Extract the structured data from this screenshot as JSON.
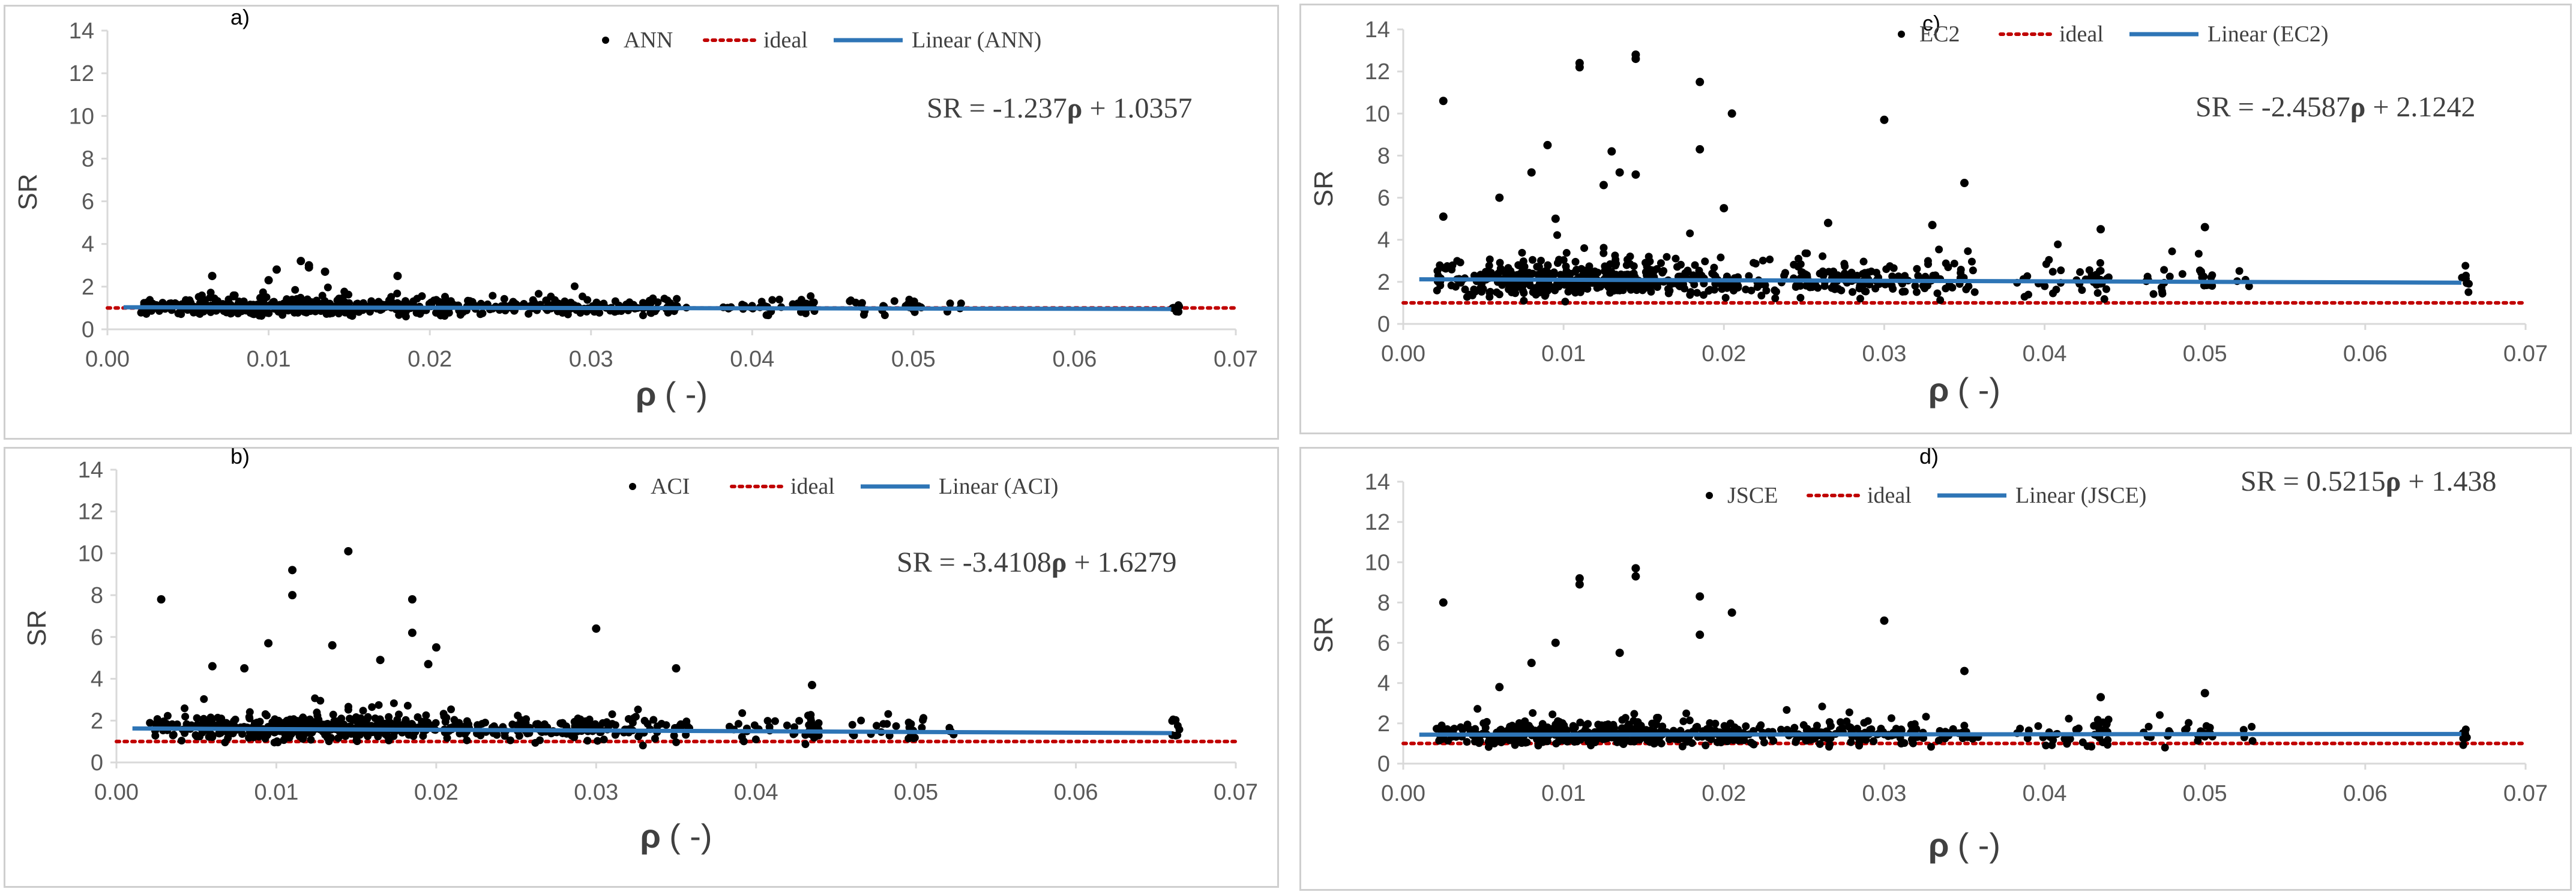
{
  "colors": {
    "points": "#000000",
    "ideal": "#c00000",
    "linear": "#2e75b6",
    "axis": "#d9d9d9",
    "text": "#404040"
  },
  "chart_data": [
    {
      "id": "a",
      "type": "scatter",
      "letter": "a)",
      "xlabel": "ρ",
      "xunit": "( -)",
      "ylabel": "SR",
      "xlim": [
        0,
        0.07
      ],
      "ylim": [
        0,
        14
      ],
      "x_ticks": [
        "0.00",
        "0.01",
        "0.02",
        "0.03",
        "0.04",
        "0.05",
        "0.06",
        "0.07"
      ],
      "y_ticks": [
        "0",
        "2",
        "4",
        "6",
        "8",
        "10",
        "12",
        "14"
      ],
      "legend": {
        "points": "ANN",
        "ideal": "ideal",
        "linear": "Linear (ANN)"
      },
      "equation": {
        "prefix": "SR = -1.237",
        "rho": "ρ",
        "suffix": " + 1.0357"
      },
      "ideal_y": 1,
      "trend": {
        "slope": -1.237,
        "intercept": 1.0357
      },
      "spread": 0.22,
      "outliers": [
        [
          0.012,
          3.2
        ],
        [
          0.0125,
          3.0
        ],
        [
          0.0065,
          2.5
        ],
        [
          0.01,
          2.3
        ],
        [
          0.018,
          2.5
        ],
        [
          0.0105,
          2.8
        ],
        [
          0.0135,
          2.7
        ],
        [
          0.0125,
          2.9
        ]
      ]
    },
    {
      "id": "b",
      "type": "scatter",
      "letter": "b)",
      "xlabel": "ρ",
      "xunit": "( -)",
      "ylabel": "SR",
      "xlim": [
        0,
        0.07
      ],
      "ylim": [
        0,
        14
      ],
      "x_ticks": [
        "0.00",
        "0.01",
        "0.02",
        "0.03",
        "0.04",
        "0.05",
        "0.06",
        "0.07"
      ],
      "y_ticks": [
        "0",
        "2",
        "4",
        "6",
        "8",
        "10",
        "12",
        "14"
      ],
      "legend": {
        "points": "ACI",
        "ideal": "ideal",
        "linear": "Linear (ACI)"
      },
      "equation": {
        "prefix": "SR = -3.4108",
        "rho": "ρ",
        "suffix": "  + 1.6279"
      },
      "ideal_y": 1,
      "trend": {
        "slope": -3.4108,
        "intercept": 1.6279
      },
      "spread": 0.35,
      "outliers": [
        [
          0.0028,
          7.8
        ],
        [
          0.011,
          9.2
        ],
        [
          0.011,
          8.0
        ],
        [
          0.0145,
          10.1
        ],
        [
          0.0185,
          7.8
        ],
        [
          0.0185,
          6.2
        ],
        [
          0.0095,
          5.7
        ],
        [
          0.02,
          5.5
        ],
        [
          0.03,
          6.4
        ],
        [
          0.0135,
          5.6
        ],
        [
          0.0165,
          4.9
        ],
        [
          0.008,
          4.5
        ],
        [
          0.0195,
          4.7
        ],
        [
          0.035,
          4.5
        ],
        [
          0.006,
          4.6
        ],
        [
          0.0435,
          3.7
        ]
      ]
    },
    {
      "id": "c",
      "type": "scatter",
      "letter": "c)",
      "xlabel": "ρ",
      "xunit": "( -)",
      "ylabel": "SR",
      "xlim": [
        0,
        0.07
      ],
      "ylim": [
        0,
        14
      ],
      "x_ticks": [
        "0.00",
        "0.01",
        "0.02",
        "0.03",
        "0.04",
        "0.05",
        "0.06",
        "0.07"
      ],
      "y_ticks": [
        "0",
        "2",
        "4",
        "6",
        "8",
        "10",
        "12",
        "14"
      ],
      "legend": {
        "points": "EC2",
        "ideal": "ideal",
        "linear": "Linear (EC2)"
      },
      "equation": {
        "prefix": "SR = -2.4587",
        "rho": "ρ",
        "suffix": "  + 2.1242"
      },
      "ideal_y": 1,
      "trend": {
        "slope": -2.4587,
        "intercept": 2.1242
      },
      "spread": 0.5,
      "outliers": [
        [
          0.0025,
          10.6
        ],
        [
          0.011,
          12.4
        ],
        [
          0.011,
          12.2
        ],
        [
          0.0145,
          12.8
        ],
        [
          0.0145,
          12.6
        ],
        [
          0.0185,
          11.5
        ],
        [
          0.0205,
          10.0
        ],
        [
          0.03,
          9.7
        ],
        [
          0.009,
          8.5
        ],
        [
          0.0185,
          8.3
        ],
        [
          0.013,
          8.2
        ],
        [
          0.008,
          7.2
        ],
        [
          0.0135,
          7.2
        ],
        [
          0.0145,
          7.1
        ],
        [
          0.0125,
          6.6
        ],
        [
          0.035,
          6.7
        ],
        [
          0.006,
          6.0
        ],
        [
          0.0095,
          5.0
        ],
        [
          0.0025,
          5.1
        ],
        [
          0.02,
          5.5
        ],
        [
          0.0435,
          4.5
        ],
        [
          0.05,
          4.6
        ],
        [
          0.033,
          4.7
        ],
        [
          0.0265,
          4.8
        ]
      ]
    },
    {
      "id": "d",
      "type": "scatter",
      "letter": "d)",
      "xlabel": "ρ",
      "xunit": "( -)",
      "ylabel": "SR",
      "xlim": [
        0,
        0.07
      ],
      "ylim": [
        0,
        14
      ],
      "x_ticks": [
        "0.00",
        "0.01",
        "0.02",
        "0.03",
        "0.04",
        "0.05",
        "0.06",
        "0.07"
      ],
      "y_ticks": [
        "0",
        "2",
        "4",
        "6",
        "8",
        "10",
        "12",
        "14"
      ],
      "legend": {
        "points": "JSCE",
        "ideal": "ideal",
        "linear": "Linear (JSCE)"
      },
      "equation": {
        "prefix": "SR = 0.5215",
        "rho": "ρ",
        "suffix": "  + 1.438"
      },
      "ideal_y": 1,
      "trend": {
        "slope": 0.5215,
        "intercept": 1.438
      },
      "spread": 0.33,
      "outliers": [
        [
          0.0025,
          8.0
        ],
        [
          0.011,
          9.2
        ],
        [
          0.011,
          8.9
        ],
        [
          0.0145,
          9.7
        ],
        [
          0.0145,
          9.3
        ],
        [
          0.0185,
          8.3
        ],
        [
          0.0185,
          6.4
        ],
        [
          0.0205,
          7.5
        ],
        [
          0.03,
          7.1
        ],
        [
          0.008,
          5.0
        ],
        [
          0.0135,
          5.5
        ],
        [
          0.0095,
          6.0
        ],
        [
          0.035,
          4.6
        ],
        [
          0.006,
          3.8
        ],
        [
          0.0435,
          3.3
        ],
        [
          0.05,
          3.5
        ]
      ]
    }
  ]
}
